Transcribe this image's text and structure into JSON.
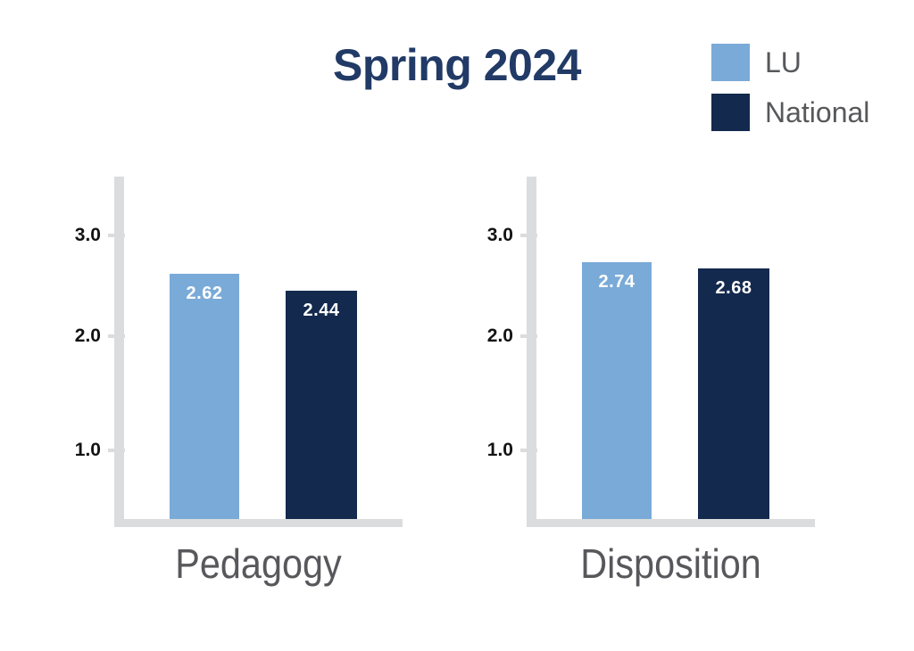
{
  "title": "Spring 2024",
  "legend": {
    "items": [
      {
        "label": "LU",
        "color": "#7AAAD8"
      },
      {
        "label": "National",
        "color": "#13294D"
      }
    ]
  },
  "chart_data": {
    "type": "bar",
    "title": "Spring 2024",
    "categories": [
      "Pedagogy",
      "Disposition"
    ],
    "series": [
      {
        "name": "LU",
        "color": "#7AAAD8",
        "values": [
          2.62,
          2.74
        ]
      },
      {
        "name": "National",
        "color": "#13294D",
        "values": [
          2.44,
          2.68
        ]
      }
    ],
    "xlabel": "",
    "ylabel": "",
    "ylim": [
      0,
      3.5
    ],
    "yticks": [
      1.0,
      2.0,
      3.0
    ],
    "grid": false,
    "legend_position": "top-right",
    "value_labels_shown": true
  },
  "panels": [
    {
      "category": "Pedagogy",
      "yticks": [
        "3.0",
        "2.0",
        "1.0"
      ],
      "bars": [
        {
          "series": "LU",
          "value": 2.62,
          "label": "2.62"
        },
        {
          "series": "National",
          "value": 2.44,
          "label": "2.44"
        }
      ]
    },
    {
      "category": "Disposition",
      "yticks": [
        "3.0",
        "2.0",
        "1.0"
      ],
      "bars": [
        {
          "series": "LU",
          "value": 2.74,
          "label": "2.74"
        },
        {
          "series": "National",
          "value": 2.68,
          "label": "2.68"
        }
      ]
    }
  ],
  "colors": {
    "lu": "#7AAAD8",
    "national": "#13294D",
    "title": "#213A66",
    "axis": "#DBDCDE",
    "tick_label": "#131313",
    "category_label": "#58585C",
    "legend_label": "#57585A",
    "bar_value_text": "#FFFFFF"
  }
}
